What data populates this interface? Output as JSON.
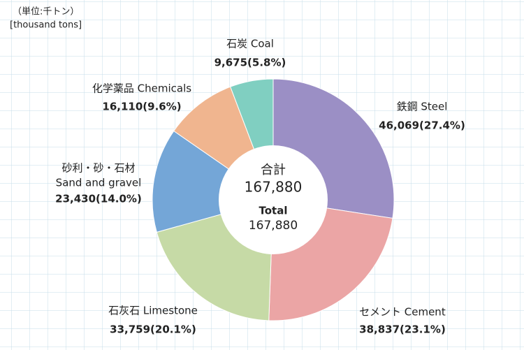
{
  "chart_data": {
    "type": "donut",
    "unit_ja": "（単位:千トン）",
    "unit_en": "[thousand tons]",
    "categories": [
      "鉄鋼 Steel",
      "セメント Cement",
      "石灰石 Limestone",
      [
        "砂利・砂・石材",
        "Sand and gravel"
      ],
      "化学薬品 Chemicals",
      "石炭 Coal"
    ],
    "values": [
      46069,
      38837,
      33759,
      23430,
      16110,
      9675
    ],
    "value_labels": [
      "46,069(27.4%)",
      "38,837(23.1%)",
      "33,759(20.1%)",
      "23,430(14.0%)",
      "16,110(9.6%)",
      "9,675(5.8%)"
    ],
    "colors": [
      "#9b8fc5",
      "#eba5a5",
      "#c6daa6",
      "#74a6d7",
      "#f0b58f",
      "#80cfc1"
    ],
    "total_title_ja": "合計",
    "total_title_en": "Total",
    "total_label": "167,880"
  }
}
